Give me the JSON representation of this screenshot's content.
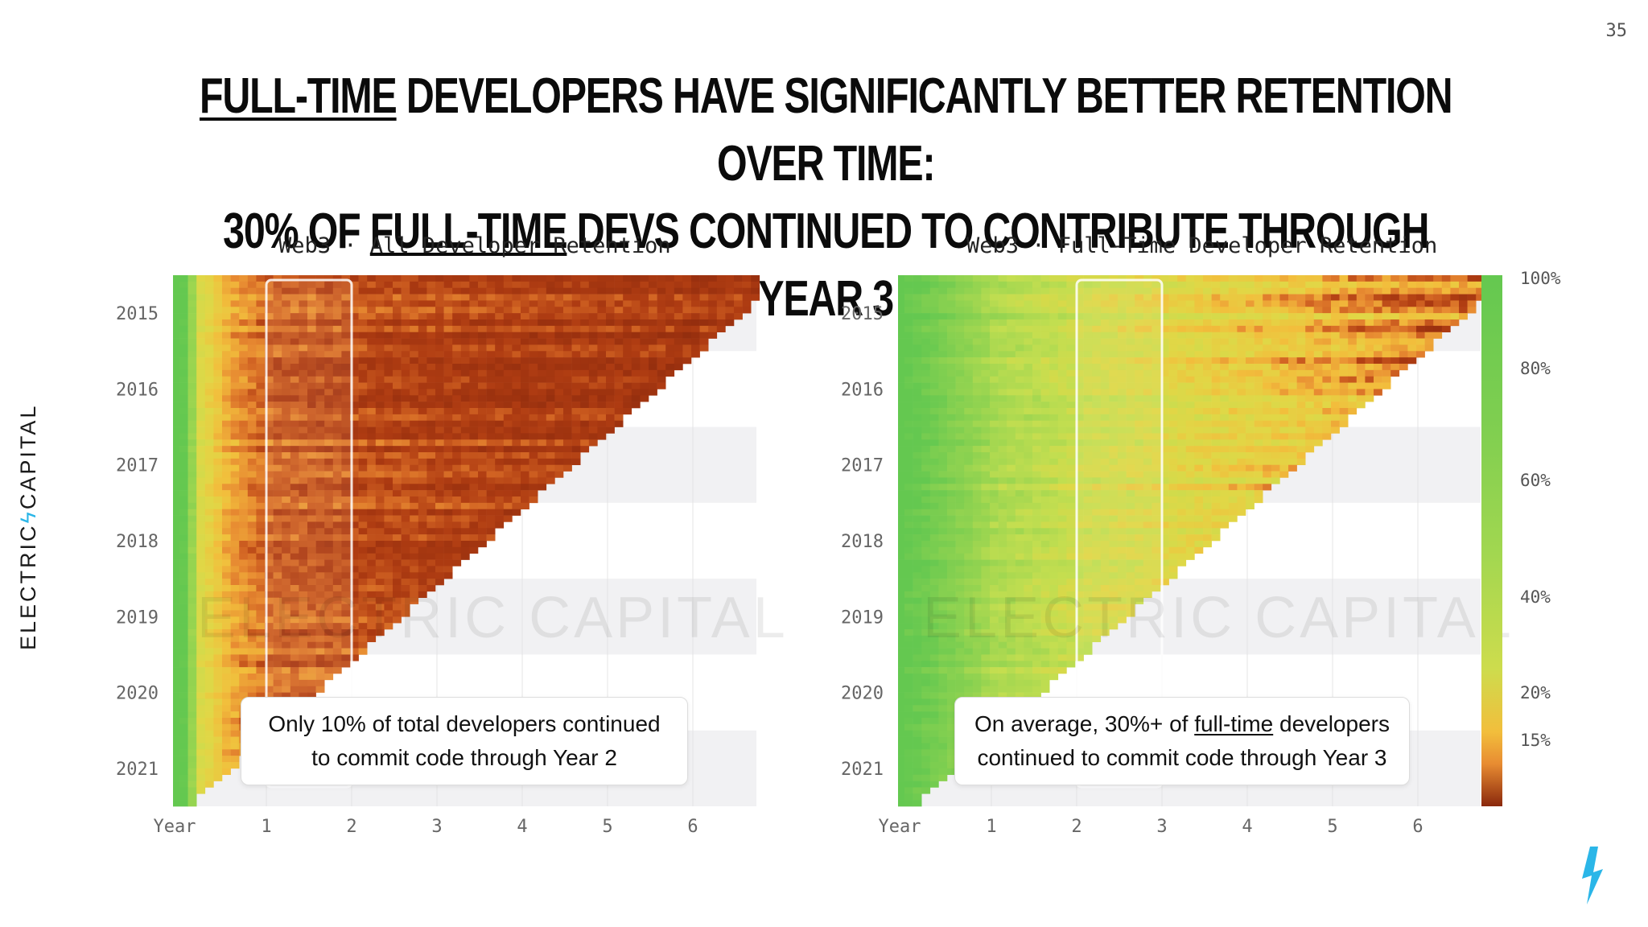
{
  "page": {
    "number": "35",
    "headline_line1": [
      {
        "text": "FULL-TIME",
        "underline": true
      },
      {
        "text": " DEVELOPERS HAVE SIGNIFICANTLY BETTER RETENTION OVER TIME:",
        "underline": false
      }
    ],
    "headline_line2": [
      {
        "text": "30% OF ",
        "underline": false
      },
      {
        "text": "FULL-TIME",
        "underline": true
      },
      {
        "text": " DEVS CONTINUED TO CONTRIBUTE THROUGH YEAR 3",
        "underline": false
      }
    ],
    "side_logo_left": "ELECTRIC",
    "side_logo_right": "CAPITAL",
    "watermark": "ELECTRIC CAPITAL",
    "icons": {
      "bolt": "lightning-bolt-icon"
    },
    "colors": {
      "brand_blue": "#2bb6e8",
      "green": "#6dcc4e",
      "yellow": "#f2c33a",
      "orange": "#e0782a",
      "dark_red": "#8a2a0c"
    }
  },
  "callouts": {
    "left_text": "Only 10% of total developers continued to commit code through Year 2",
    "right_prefix": "On average, 30%+ of ",
    "right_link": "full-time",
    "right_suffix": " developers continued to commit code through Year 3"
  },
  "chart_data": [
    {
      "type": "heatmap",
      "title": "Web3 · All Developer Retention",
      "xlabel": "Year",
      "x_ticks": [
        "1",
        "2",
        "3",
        "4",
        "5",
        "6"
      ],
      "y_ticks": [
        "2015",
        "2016",
        "2017",
        "2018",
        "2019",
        "2020",
        "2021"
      ],
      "cohort_start": 2014.5,
      "cohort_end": 2021.5,
      "highlight_column": {
        "from_year": 1,
        "to_year": 2
      },
      "retention_profile": {
        "year": [
          0,
          0.15,
          0.5,
          1,
          2,
          3,
          4,
          5,
          6,
          7
        ],
        "retention_pct": [
          100,
          35,
          18,
          12,
          10,
          9,
          8,
          8,
          7,
          7
        ]
      },
      "color_scale": "retention"
    },
    {
      "type": "heatmap",
      "title": "Web3 · Full-Time Developer Retention",
      "xlabel": "Year",
      "x_ticks": [
        "1",
        "2",
        "3",
        "4",
        "5",
        "6"
      ],
      "y_ticks": [
        "2015",
        "2016",
        "2017",
        "2018",
        "2019",
        "2020",
        "2021"
      ],
      "cohort_start": 2014.5,
      "cohort_end": 2021.5,
      "highlight_column": {
        "from_year": 2,
        "to_year": 3
      },
      "retention_profile": {
        "year": [
          0,
          1,
          2,
          3,
          4,
          5,
          6,
          7
        ],
        "retention_pct": [
          100,
          55,
          40,
          32,
          26,
          20,
          16,
          14
        ]
      },
      "color_scale": "retention"
    }
  ],
  "legend": {
    "ticks": [
      {
        "label": "100%",
        "value": 100
      },
      {
        "label": "80%",
        "value": 80
      },
      {
        "label": "60%",
        "value": 60
      },
      {
        "label": "40%",
        "value": 40
      },
      {
        "label": "20%",
        "value": 20
      },
      {
        "label": "15%",
        "value": 15
      }
    ]
  }
}
